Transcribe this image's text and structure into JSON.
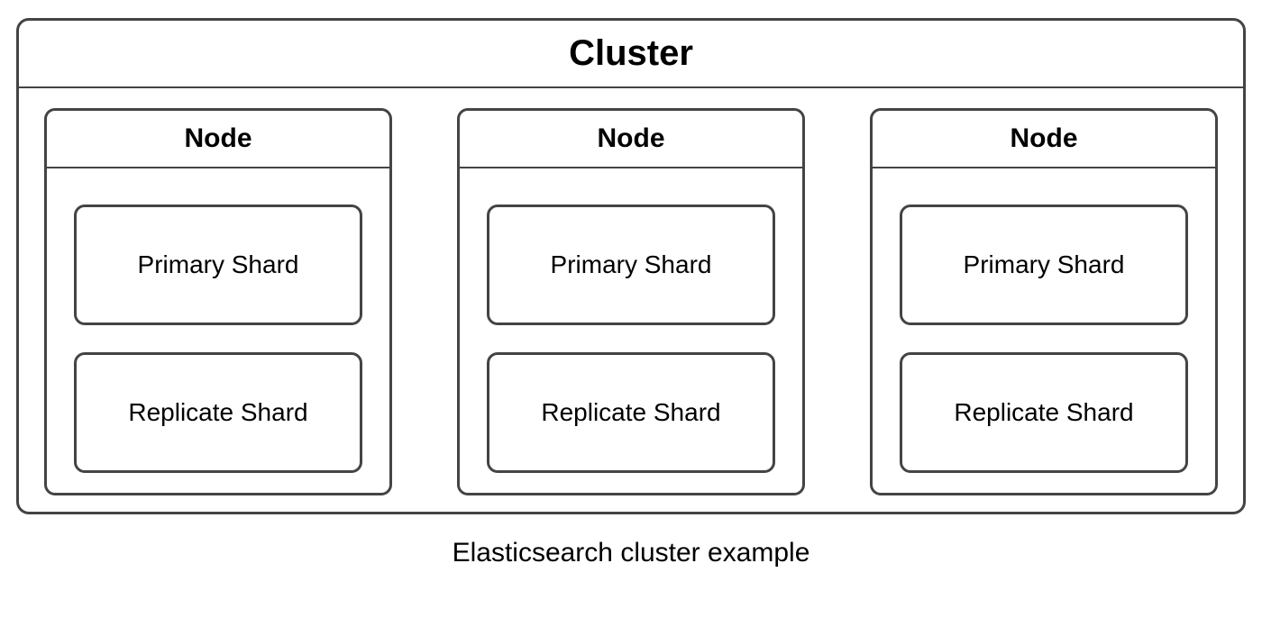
{
  "diagram": {
    "type": "infographic",
    "background_color": "#ffffff",
    "border_color": "#444444",
    "border_width": 3,
    "border_radius": 12,
    "text_color": "#000000",
    "font_family": "Arial",
    "cluster": {
      "title": "Cluster",
      "title_fontsize": 40,
      "title_fontweight": 700,
      "nodes": [
        {
          "title": "Node",
          "title_fontsize": 30,
          "title_fontweight": 700,
          "shards": [
            {
              "label": "Primary Shard",
              "fontsize": 28,
              "fontweight": 400
            },
            {
              "label": "Replicate Shard",
              "fontsize": 28,
              "fontweight": 400
            }
          ]
        },
        {
          "title": "Node",
          "title_fontsize": 30,
          "title_fontweight": 700,
          "shards": [
            {
              "label": "Primary Shard",
              "fontsize": 28,
              "fontweight": 400
            },
            {
              "label": "Replicate Shard",
              "fontsize": 28,
              "fontweight": 400
            }
          ]
        },
        {
          "title": "Node",
          "title_fontsize": 30,
          "title_fontweight": 700,
          "shards": [
            {
              "label": "Primary Shard",
              "fontsize": 28,
              "fontweight": 400
            },
            {
              "label": "Replicate Shard",
              "fontsize": 28,
              "fontweight": 400
            }
          ]
        }
      ]
    },
    "caption": "Elasticsearch cluster example",
    "caption_fontsize": 30,
    "caption_fontweight": 400
  }
}
